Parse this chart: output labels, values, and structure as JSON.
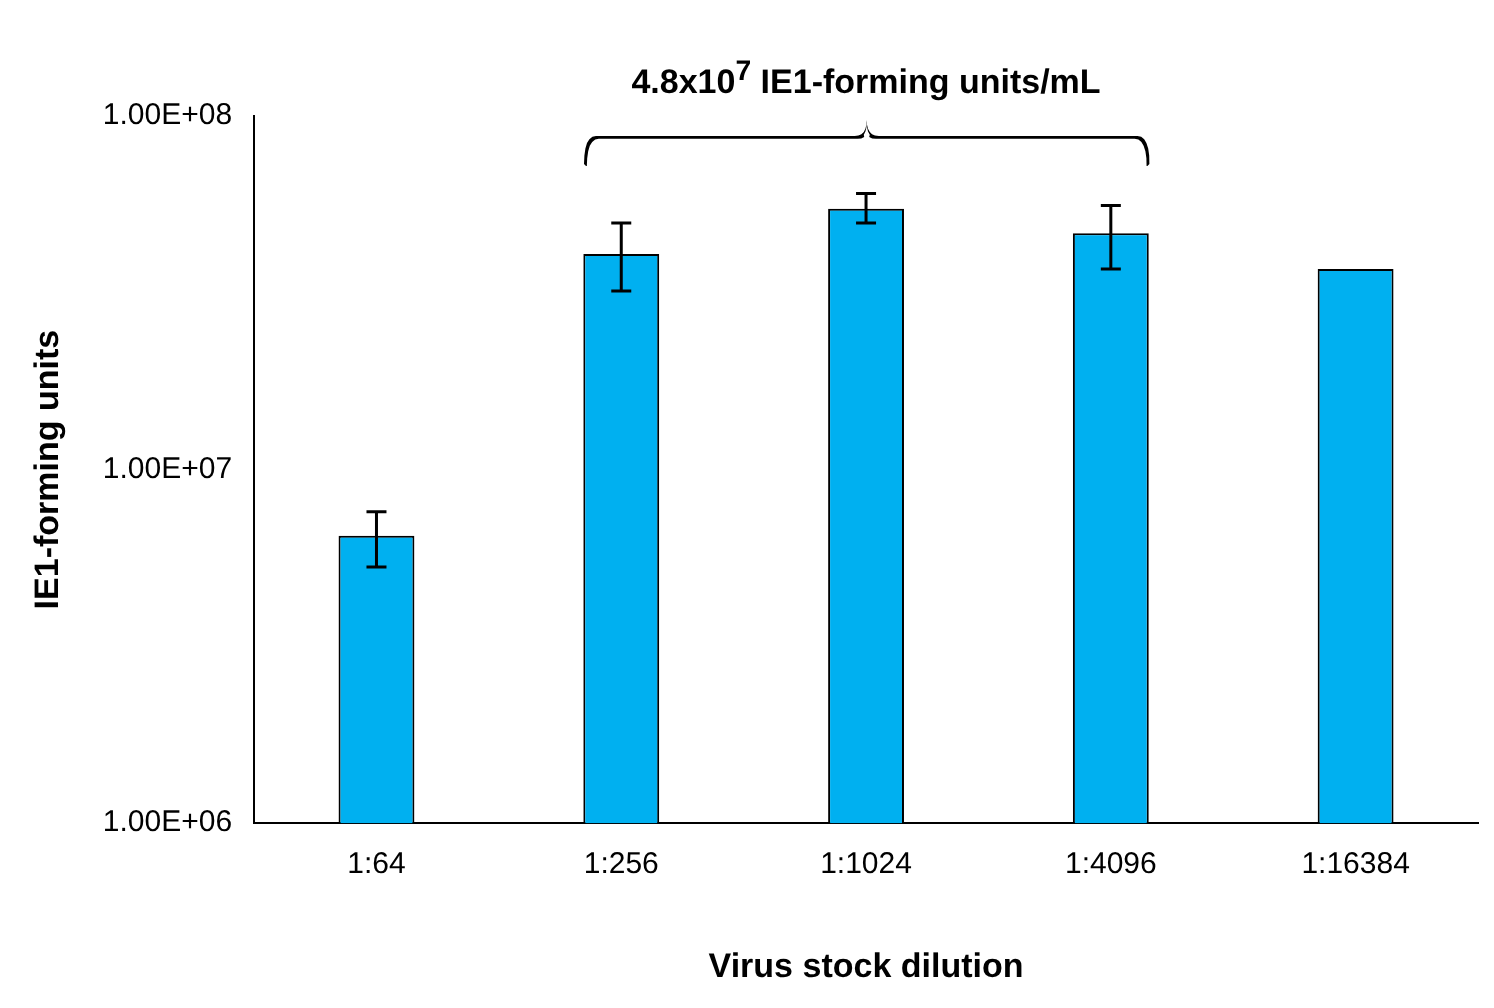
{
  "chart_data": {
    "type": "bar",
    "xlabel": "Virus stock dilution",
    "ylabel": "IE1-forming units",
    "categories": [
      "1:64",
      "1:256",
      "1:1024",
      "1:4096",
      "1:16384"
    ],
    "values": [
      6500000,
      40700000,
      54700000,
      46600000,
      36900000
    ],
    "errors": [
      [
        5300000,
        7600000
      ],
      [
        32000000,
        49800000
      ],
      [
        49800000,
        60400000
      ],
      [
        36900000,
        55800000
      ],
      null
    ],
    "color": "#00b0f0",
    "log": true,
    "ylim": [
      1000000,
      100000000
    ],
    "yticks": [
      {
        "value": 1000000,
        "label": "1.00E+06"
      },
      {
        "value": 10000000,
        "label": "1.00E+07"
      },
      {
        "value": 100000000,
        "label": "1.00E+08"
      }
    ],
    "grid": false,
    "legend": false,
    "annotations": [
      "4.8x10$^{7}$ IE1-forming units/mL"
    ]
  }
}
